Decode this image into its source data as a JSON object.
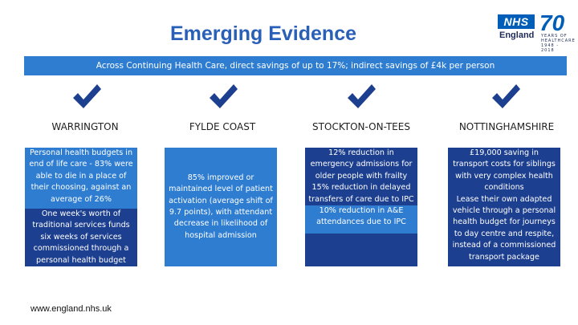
{
  "header": {
    "title": "Emerging Evidence",
    "logo_nhs": "NHS",
    "logo_region": "England",
    "logo_seventy": "70",
    "logo_years": "YEARS OF HEALTHCARE 1948 - 2018"
  },
  "banner": {
    "text": "Across Continuing Health Care, direct savings of up to 17%; indirect savings of £4k per person"
  },
  "colors": {
    "light_blue": "#2e7dd1",
    "dark_blue": "#1d3f8f",
    "title_blue": "#2a5fb8",
    "tick_blue": "#1d3f8f"
  },
  "columns": [
    {
      "name": "WARRINGTON",
      "icon": "checkmark-icon",
      "paragraphs": [
        "Personal health budgets in end of life care - 83% were able to die in a place of their choosing, against an average of 26%",
        "One week's worth of traditional services funds six weeks of services commissioned through a personal health budget"
      ]
    },
    {
      "name": "FYLDE COAST",
      "icon": "checkmark-icon",
      "paragraphs": [
        "85% improved or maintained level of patient activation (average shift of 9.7 points), with attendant decrease in likelihood of hospital admission"
      ]
    },
    {
      "name": "STOCKTON-ON-TEES",
      "icon": "checkmark-icon",
      "paragraphs": [
        "12% reduction in emergency admissions for older people with frailty",
        "15% reduction in delayed transfers of care due to IPC",
        "10% reduction in A&E attendances due to IPC"
      ]
    },
    {
      "name": "NOTTINGHAMSHIRE",
      "icon": "checkmark-icon",
      "paragraphs": [
        "£19,000 saving in transport costs for siblings with very complex health conditions",
        "Lease their own adapted vehicle through a personal health budget for journeys to day centre and respite, instead of a commissioned transport package"
      ]
    }
  ],
  "footer": {
    "url": "www.england.nhs.uk"
  }
}
